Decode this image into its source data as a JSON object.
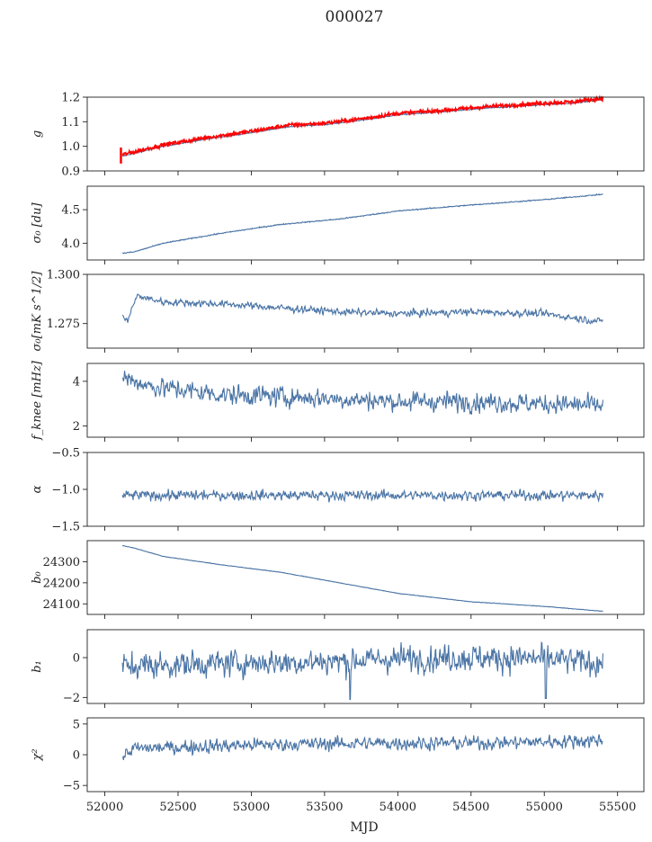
{
  "title": "000027",
  "chart_data": {
    "type": "line",
    "xlabel": "MJD",
    "x_range": [
      52120,
      55400
    ],
    "xlim": [
      51880,
      55680
    ],
    "xticks": [
      52000,
      52500,
      53000,
      53500,
      54000,
      54500,
      55000,
      55500
    ],
    "colors": {
      "series": "#4a74a5",
      "overlay": "#ff0000",
      "axis": "#222222"
    },
    "panels": [
      {
        "ylabel": "g",
        "ylim": [
          0.9,
          1.2
        ],
        "yticks": [
          0.9,
          1.0,
          1.1,
          1.2
        ],
        "ytick_labels": [
          "0.9",
          "1.0",
          "1.1",
          "1.2"
        ],
        "series": {
          "type": "smooth",
          "knots": [
            [
              52120,
              0.96
            ],
            [
              52400,
              1.0
            ],
            [
              52700,
              1.03
            ],
            [
              53000,
              1.055
            ],
            [
              53250,
              1.08
            ],
            [
              53500,
              1.088
            ],
            [
              53800,
              1.11
            ],
            [
              54000,
              1.128
            ],
            [
              54300,
              1.14
            ],
            [
              54600,
              1.155
            ],
            [
              55000,
              1.17
            ],
            [
              55200,
              1.175
            ],
            [
              55400,
              1.19
            ]
          ],
          "noise": 0.001
        },
        "overlay": {
          "type": "smooth",
          "offset": 0.006,
          "noise": 0.004,
          "spike_at": 52110,
          "spike_range": [
            0.93,
            0.995
          ]
        }
      },
      {
        "ylabel": "σ₀ [du]",
        "ylim": [
          3.75,
          4.85
        ],
        "yticks": [
          4.0,
          4.5
        ],
        "ytick_labels": [
          "4.0",
          "4.5"
        ],
        "series": {
          "type": "smooth",
          "knots": [
            [
              52120,
              3.85
            ],
            [
              52200,
              3.87
            ],
            [
              52400,
              4.0
            ],
            [
              52800,
              4.15
            ],
            [
              53200,
              4.28
            ],
            [
              53600,
              4.36
            ],
            [
              54000,
              4.48
            ],
            [
              54500,
              4.57
            ],
            [
              55000,
              4.65
            ],
            [
              55400,
              4.73
            ]
          ],
          "noise": 0.004
        }
      },
      {
        "ylabel": "σ₀[mK s^1/2]",
        "ylim": [
          1.2625,
          1.3
        ],
        "yticks": [
          1.275,
          1.3
        ],
        "ytick_labels": [
          "1.275",
          "1.300"
        ],
        "series": {
          "type": "noisy",
          "knots": [
            [
              52120,
              1.279
            ],
            [
              52150,
              1.276
            ],
            [
              52220,
              1.289
            ],
            [
              52400,
              1.286
            ],
            [
              52800,
              1.285
            ],
            [
              53200,
              1.283
            ],
            [
              53600,
              1.281
            ],
            [
              54000,
              1.28
            ],
            [
              54500,
              1.281
            ],
            [
              55000,
              1.28
            ],
            [
              55380,
              1.276
            ],
            [
              55400,
              1.277
            ]
          ],
          "noise": 0.0012
        }
      },
      {
        "ylabel": "f_knee [mHz]",
        "ylim": [
          1.5,
          4.8
        ],
        "yticks": [
          2,
          4
        ],
        "ytick_labels": [
          "2",
          "4"
        ],
        "series": {
          "type": "noisy",
          "knots": [
            [
              52120,
              4.2
            ],
            [
              52300,
              3.8
            ],
            [
              52800,
              3.4
            ],
            [
              53300,
              3.3
            ],
            [
              54000,
              3.1
            ],
            [
              54500,
              3.1
            ],
            [
              55000,
              3.0
            ],
            [
              55400,
              2.9
            ]
          ],
          "noise": 0.3
        }
      },
      {
        "ylabel": "α",
        "ylim": [
          -1.5,
          -0.5
        ],
        "yticks": [
          -1.5,
          -1.0,
          -0.5
        ],
        "ytick_labels": [
          "−1.5",
          "−1.0",
          "−0.5"
        ],
        "series": {
          "type": "noisy",
          "knots": [
            [
              52120,
              -1.08
            ],
            [
              55400,
              -1.08
            ]
          ],
          "noise": 0.045
        }
      },
      {
        "ylabel": "b₀",
        "ylim": [
          24050,
          24400
        ],
        "yticks": [
          24100,
          24200,
          24300
        ],
        "ytick_labels": [
          "24100",
          "24200",
          "24300"
        ],
        "series": {
          "type": "smooth",
          "knots": [
            [
              52120,
              24377
            ],
            [
              52200,
              24365
            ],
            [
              52400,
              24325
            ],
            [
              52800,
              24285
            ],
            [
              53200,
              24250
            ],
            [
              53600,
              24200
            ],
            [
              54000,
              24150
            ],
            [
              54500,
              24110
            ],
            [
              55000,
              24088
            ],
            [
              55400,
              24065
            ]
          ],
          "noise": 0.6
        }
      },
      {
        "ylabel": "b₁",
        "ylim": [
          -2.3,
          1.4
        ],
        "yticks": [
          -2,
          0
        ],
        "ytick_labels": [
          "−2",
          "0"
        ],
        "series": {
          "type": "noisy",
          "knots": [
            [
              52120,
              -0.45
            ],
            [
              52500,
              -0.35
            ],
            [
              53000,
              -0.25
            ],
            [
              53500,
              -0.2
            ],
            [
              54000,
              -0.05
            ],
            [
              54500,
              0.0
            ],
            [
              55000,
              -0.05
            ],
            [
              55400,
              -0.3
            ]
          ],
          "noise": 0.45,
          "dips": [
            [
              53675,
              -2.1
            ],
            [
              55010,
              -2.05
            ]
          ]
        }
      },
      {
        "ylabel": "χ²",
        "ylim": [
          -6,
          6
        ],
        "yticks": [
          -5,
          0,
          5
        ],
        "ytick_labels": [
          "−5",
          "0",
          "5"
        ],
        "series": {
          "type": "noisy",
          "knots": [
            [
              52120,
              -0.2
            ],
            [
              52200,
              1.0
            ],
            [
              52600,
              1.3
            ],
            [
              53000,
              1.6
            ],
            [
              53500,
              1.8
            ],
            [
              54000,
              1.9
            ],
            [
              54500,
              1.9
            ],
            [
              55000,
              2.1
            ],
            [
              55400,
              2.4
            ]
          ],
          "noise": 0.75
        }
      }
    ]
  }
}
